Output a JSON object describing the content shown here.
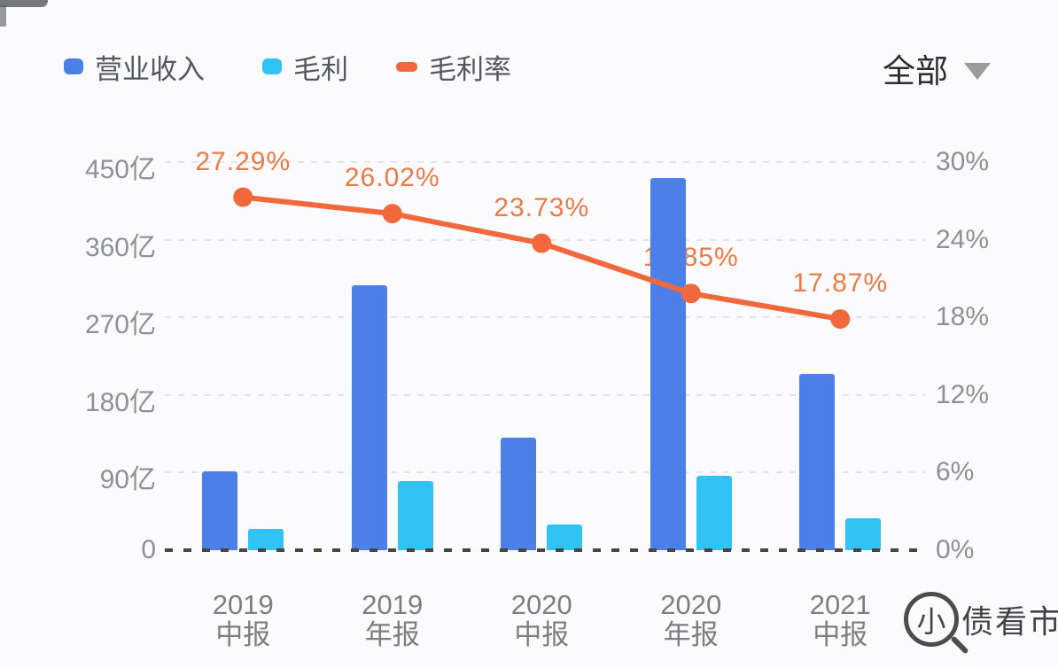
{
  "legend": {
    "items": [
      {
        "label": "营业收入",
        "color": "#4C80E8",
        "swatch": "square",
        "key": "revenue"
      },
      {
        "label": "毛利",
        "color": "#31C3F3",
        "swatch": "square",
        "key": "gross-profit"
      },
      {
        "label": "毛利率",
        "color": "#F0683C",
        "swatch": "dash",
        "key": "gross-margin"
      }
    ]
  },
  "filter_dropdown": {
    "selected": "全部"
  },
  "watermark": {
    "glass_char": "小",
    "text": "债看市"
  },
  "chart_data": {
    "type": "bar+line",
    "categories": [
      "2019 中报",
      "2019 年报",
      "2020 中报",
      "2020 年报",
      "2021 中报"
    ],
    "category_lines": [
      [
        "2019",
        "中报"
      ],
      [
        "2019",
        "年报"
      ],
      [
        "2020",
        "中报"
      ],
      [
        "2020",
        "年报"
      ],
      [
        "2021",
        "中报"
      ]
    ],
    "left_axis": {
      "unit": "亿",
      "min": 0,
      "max": 450,
      "ticks": [
        "450亿",
        "360亿",
        "270亿",
        "180亿",
        "90亿",
        "0"
      ]
    },
    "right_axis": {
      "unit": "%",
      "min": 0,
      "max": 30,
      "ticks": [
        "30%",
        "24%",
        "18%",
        "12%",
        "6%",
        "0%"
      ]
    },
    "series": [
      {
        "name": "营业收入",
        "type": "bar",
        "axis": "left",
        "color": "#4C80E8",
        "unit": "亿",
        "values": [
          91,
          307,
          130,
          432,
          204
        ]
      },
      {
        "name": "毛利",
        "type": "bar",
        "axis": "left",
        "color": "#31C3F3",
        "unit": "亿",
        "values": [
          25,
          80,
          30,
          86,
          37
        ]
      },
      {
        "name": "毛利率",
        "type": "line",
        "axis": "right",
        "color": "#F0683C",
        "unit": "%",
        "values": [
          27.29,
          26.02,
          23.73,
          19.85,
          17.87
        ],
        "point_labels": [
          "27.29%",
          "26.02%",
          "23.73%",
          "19.85%",
          "17.87%"
        ]
      }
    ],
    "grid": "dashed-horizontal",
    "legend_position": "top-left"
  }
}
